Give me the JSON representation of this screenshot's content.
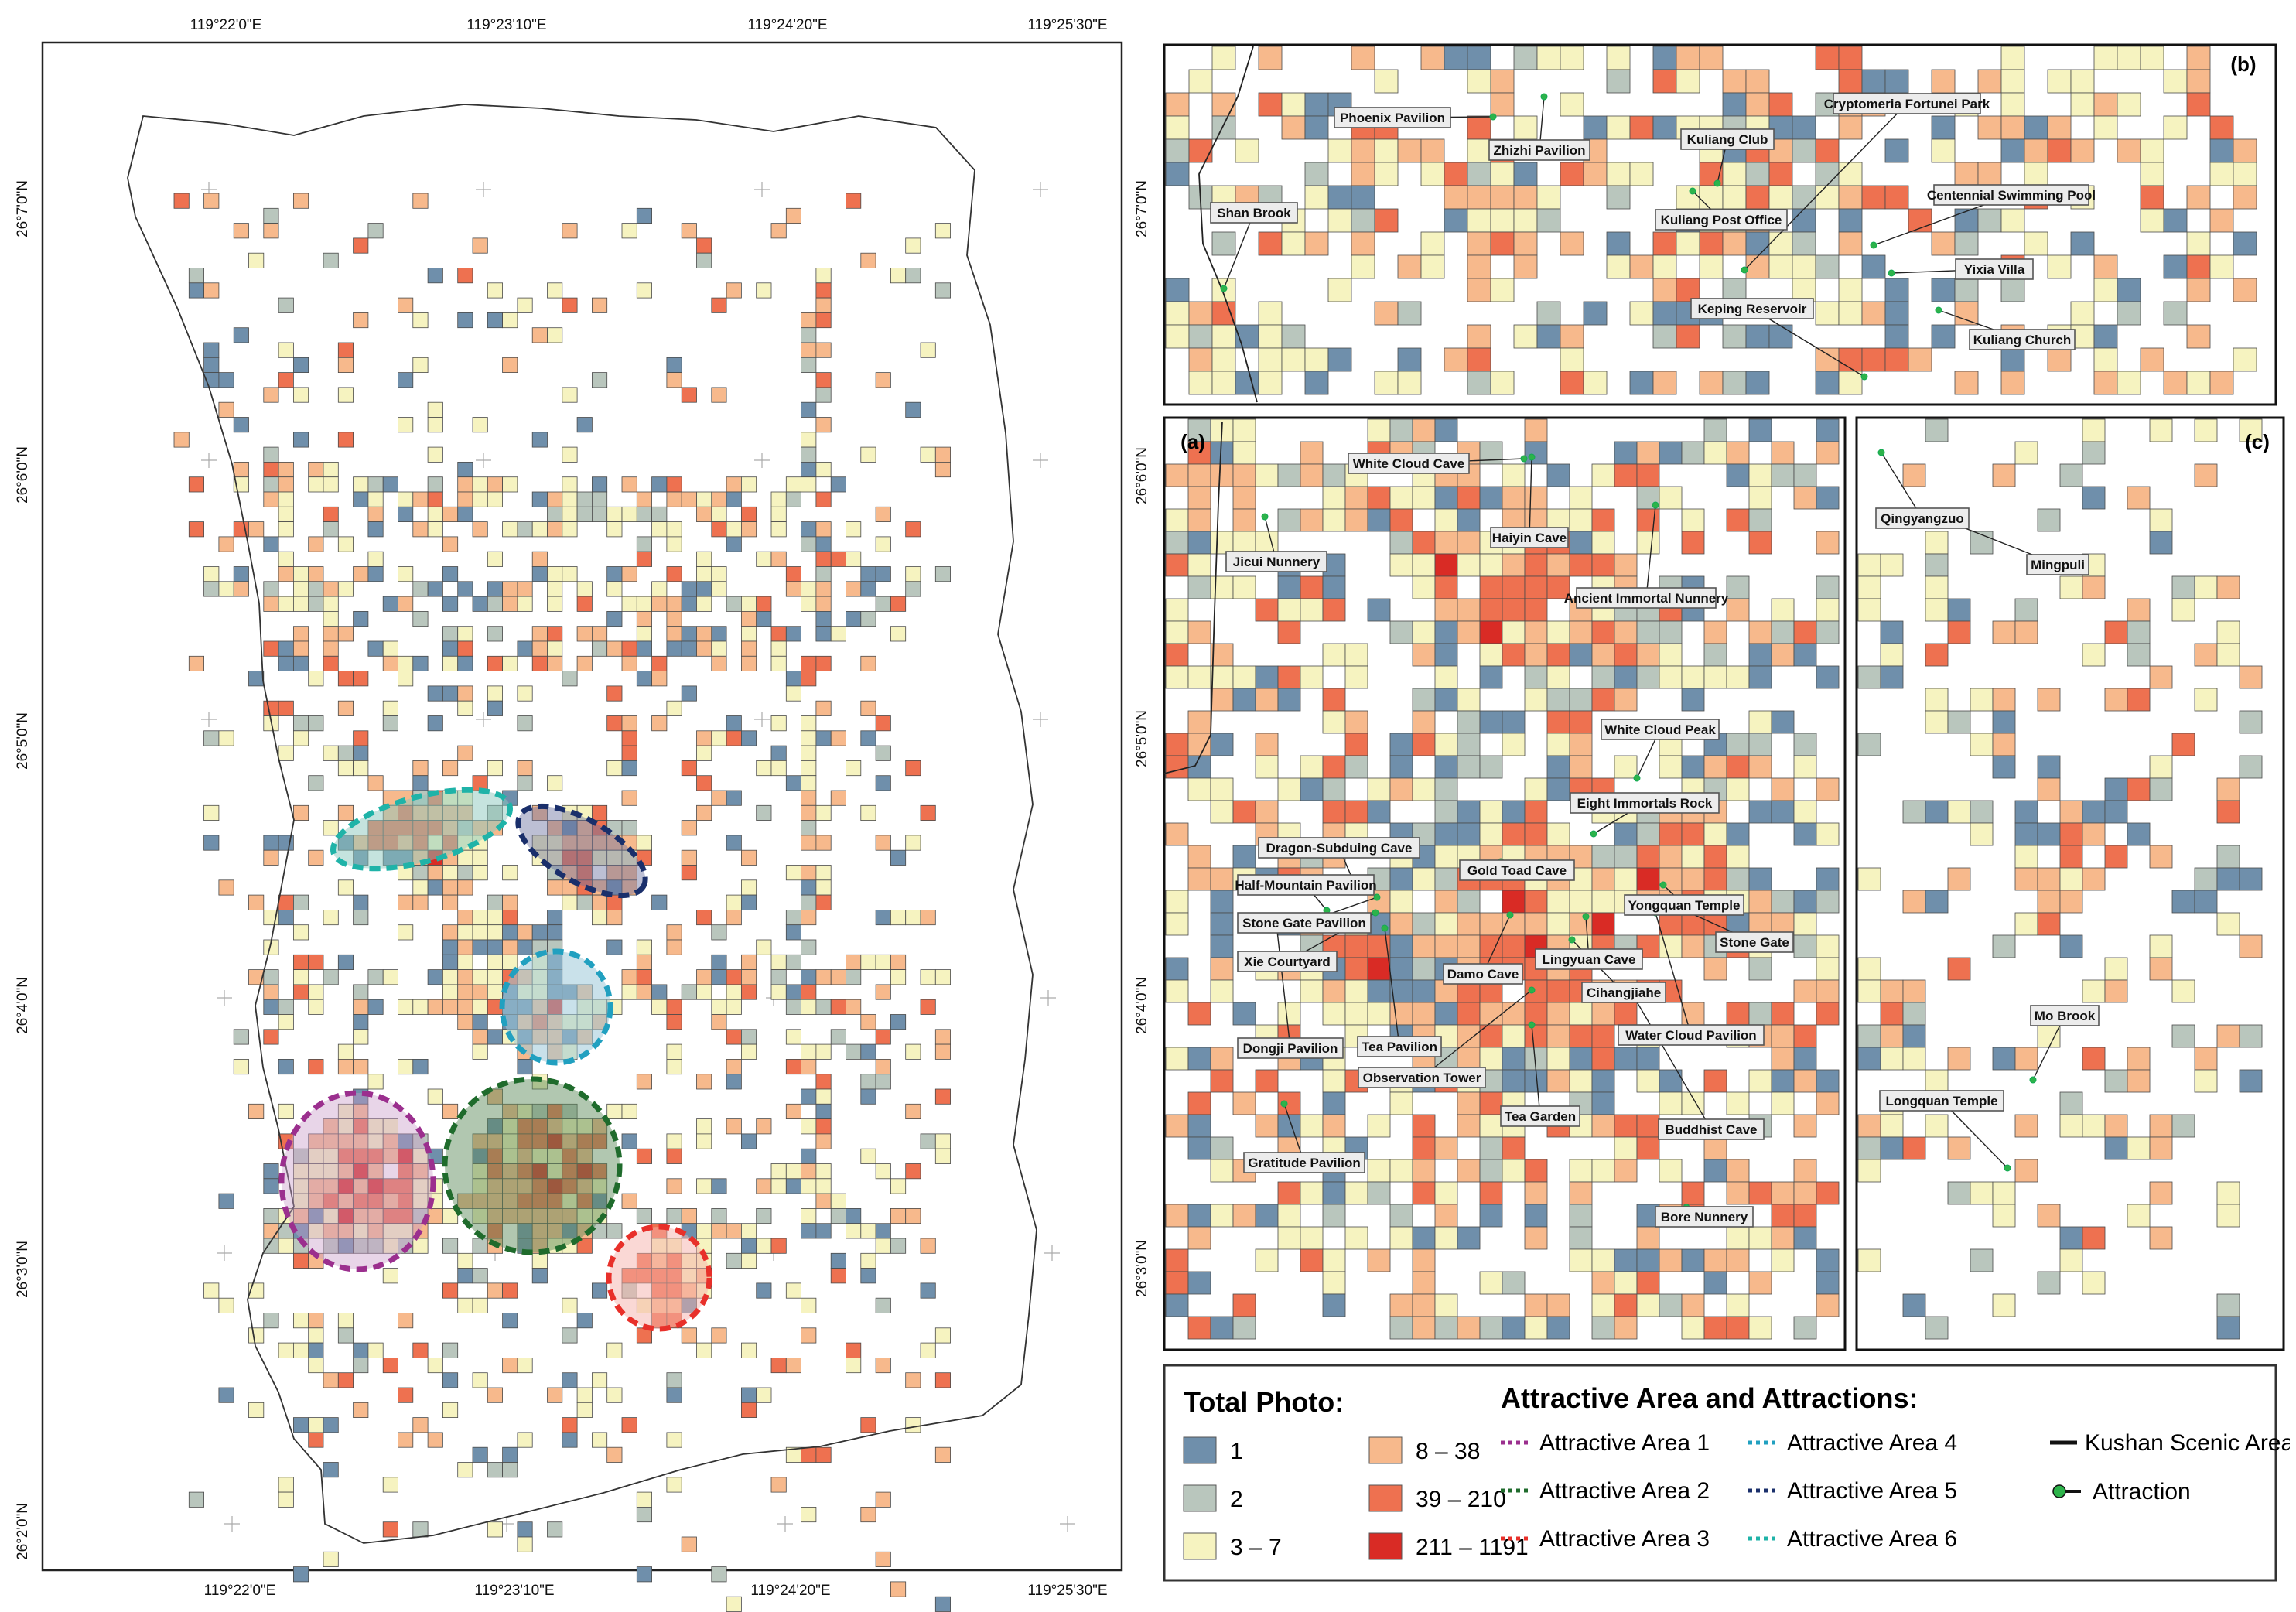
{
  "main_map": {
    "x_ticks": [
      "119°22'0\"E",
      "119°23'10\"E",
      "119°24'20\"E",
      "119°25'30\"E"
    ],
    "y_ticks": [
      "26°7'0\"N",
      "26°6'0\"N",
      "26°5'0\"N",
      "26°4'0\"N",
      "26°3'0\"N",
      "26°2'0\"N"
    ],
    "attractive_areas": [
      {
        "id": 1,
        "color": "#9b2f8e"
      },
      {
        "id": 2,
        "color": "#1f6b2c"
      },
      {
        "id": 3,
        "color": "#e8302a"
      },
      {
        "id": 4,
        "color": "#21a0c0"
      },
      {
        "id": 5,
        "color": "#1a2f6b"
      },
      {
        "id": 6,
        "color": "#1fb3a8"
      }
    ]
  },
  "inset_a": {
    "tag": "(a)",
    "y_ticks": [
      "26°6'0\"N",
      "26°5'0\"N",
      "26°4'0\"N",
      "26°3'0\"N"
    ],
    "labels": [
      "White Cloud Cave",
      "Jicui Nunnery",
      "Haiyin Cave",
      "Ancient Immortal Nunnery",
      "White Cloud Peak",
      "Eight Immortals Rock",
      "Dragon-Subduing Cave",
      "Gold Toad Cave",
      "Half-Mountain Pavilion",
      "Yongquan Temple",
      "Stone Gate Pavilion",
      "Stone Gate",
      "Lingyuan Cave",
      "Xie Courtyard",
      "Damo Cave",
      "Cihangjiahe",
      "Water Cloud Pavilion",
      "Dongji Pavilion",
      "Tea Pavilion",
      "Observation Tower",
      "Tea Garden",
      "Buddhist Cave",
      "Gratitude Pavilion",
      "Bore Nunnery"
    ]
  },
  "inset_b": {
    "tag": "(b)",
    "y_ticks": [
      "26°7'0\"N"
    ],
    "labels": [
      "Phoenix Pavilion",
      "Zhizhi Pavilion",
      "Kuliang Club",
      "Cryptomeria Fortunei Park",
      "Shan Brook",
      "Kuliang Post Office",
      "Centennial Swimming Pool",
      "Yixia Villa",
      "Keping Reservoir",
      "Kuliang Church"
    ]
  },
  "inset_c": {
    "tag": "(c)",
    "labels": [
      "Qingyangzuo",
      "Mingpuli",
      "Mo Brook",
      "Longquan Temple"
    ]
  },
  "legend": {
    "total_title": "Total Photo:",
    "classes": [
      {
        "label": "1",
        "color": "#6f8fab"
      },
      {
        "label": "2",
        "color": "#b9c6bd"
      },
      {
        "label": "3 – 7",
        "color": "#f6f3c0"
      },
      {
        "label": "8 – 38",
        "color": "#f7b98c"
      },
      {
        "label": "39 – 210",
        "color": "#ee7150"
      },
      {
        "label": "211 – 1191",
        "color": "#d92b25"
      }
    ],
    "areas_title": "Attractive Area and Attractions:",
    "areas": [
      "Attractive Area 1",
      "Attractive Area 2",
      "Attractive Area 3",
      "Attractive Area 4",
      "Attractive Area 5",
      "Attractive Area 6"
    ],
    "kushan_label": "Kushan Scenic Area",
    "attraction_label": "Attraction",
    "attraction_color": "#2db34a"
  }
}
